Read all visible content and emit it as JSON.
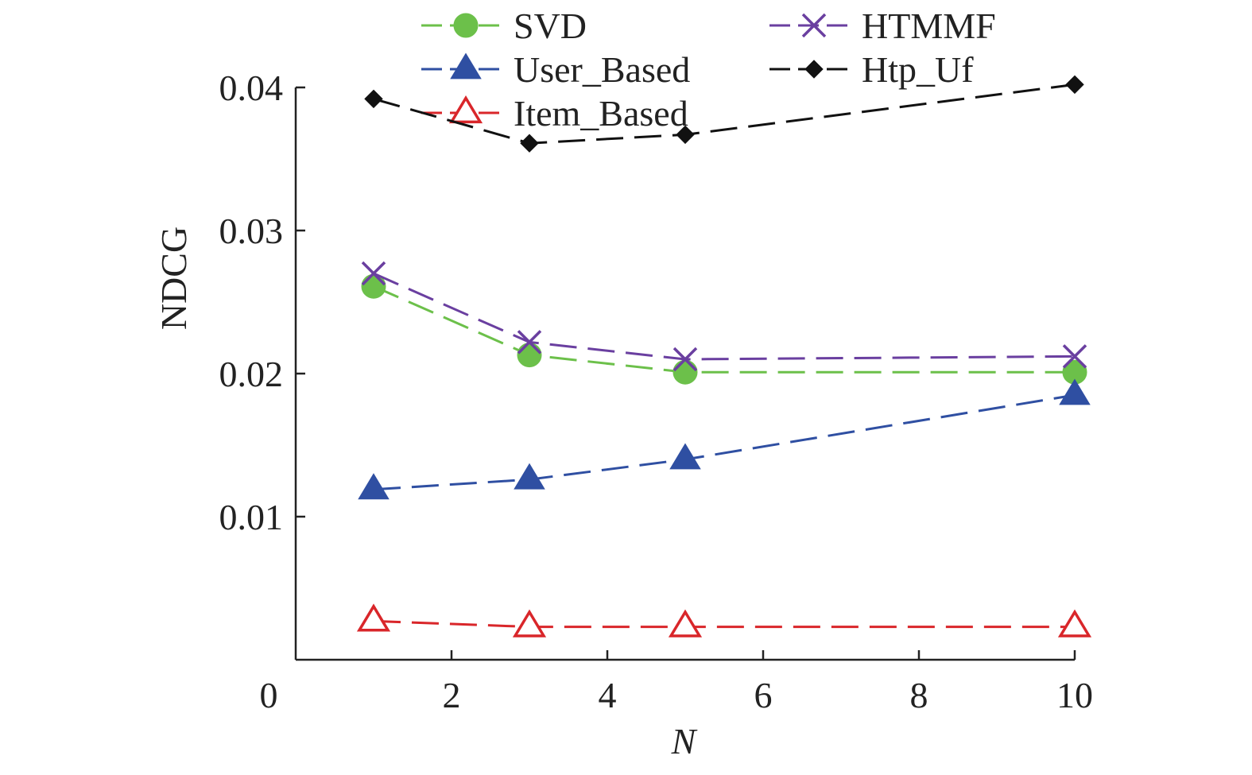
{
  "chart_data": {
    "type": "line",
    "title": "",
    "xlabel": "N",
    "ylabel": "NDCG",
    "x": [
      1,
      3,
      5,
      10
    ],
    "xlim": [
      0,
      10
    ],
    "ylim": [
      0,
      0.04
    ],
    "xticks": [
      2,
      4,
      6,
      8,
      10
    ],
    "xtick_labels": [
      "2",
      "4",
      "6",
      "8",
      "10"
    ],
    "yticks": [
      0.01,
      0.02,
      0.03,
      0.04
    ],
    "ytick_labels": [
      "0.01",
      "0.02",
      "0.03",
      "0.04"
    ],
    "origin_label": "0",
    "grid": false,
    "legend_position": "top",
    "series": [
      {
        "name": "SVD",
        "color": "#6cc04a",
        "marker": "circle",
        "values": [
          0.0261,
          0.0213,
          0.0201,
          0.0201
        ]
      },
      {
        "name": "User_Based",
        "color": "#2f4fa2",
        "marker": "triangle-filled",
        "values": [
          0.0119,
          0.0126,
          0.014,
          0.0185
        ]
      },
      {
        "name": "Item_Based",
        "color": "#d9262a",
        "marker": "triangle-open",
        "values": [
          0.0027,
          0.0023,
          0.0023,
          0.0023
        ]
      },
      {
        "name": "HTMMF",
        "color": "#6a3fa0",
        "marker": "x",
        "values": [
          0.027,
          0.0222,
          0.021,
          0.0212
        ]
      },
      {
        "name": "Htp_Uf",
        "color": "#111111",
        "marker": "diamond",
        "values": [
          0.0392,
          0.0361,
          0.0367,
          0.0402
        ]
      }
    ]
  }
}
